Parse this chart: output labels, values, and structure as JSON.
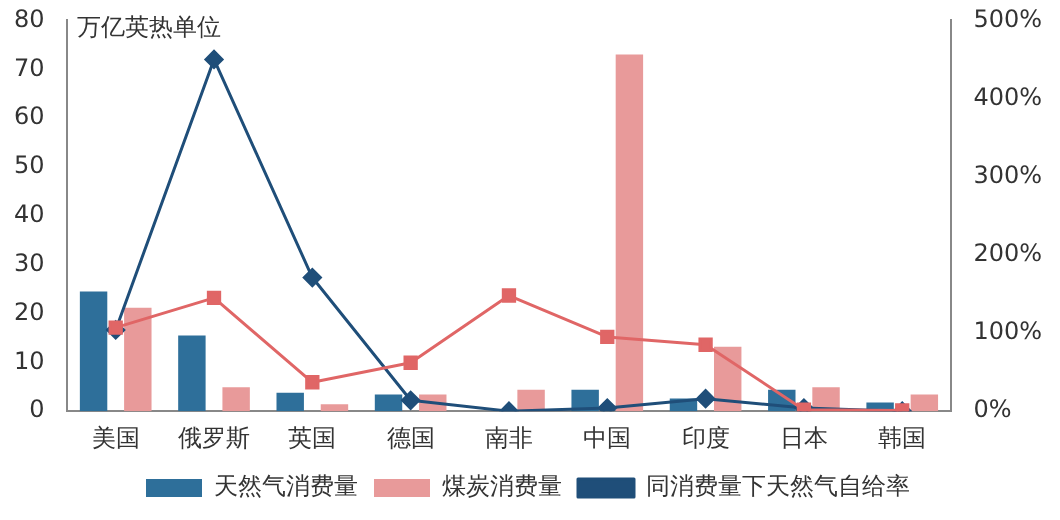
{
  "chart_data": {
    "type": "bar",
    "ylabel": "万亿英热单位",
    "categories": [
      "美国",
      "俄罗斯",
      "英国",
      "德国",
      "南非",
      "中国",
      "印度",
      "日本",
      "韩国"
    ],
    "series": [
      {
        "name": "天然气消费量",
        "color": "#2e6f9a",
        "values": [
          24.5,
          15.5,
          3.8,
          3.4,
          0,
          4.4,
          2.6,
          4.4,
          1.8
        ]
      },
      {
        "name": "煤炭消费量",
        "color": "#e89a9a",
        "values": [
          21.2,
          4.9,
          1.4,
          3.4,
          4.4,
          73,
          13.2,
          4.9,
          3.4
        ]
      },
      {
        "name": "同消费量下天然气自给率",
        "type": "line",
        "axis": "y2",
        "marker": "diamond",
        "color": "#1f4e79",
        "values": [
          104,
          450,
          171,
          14,
          0,
          4,
          16,
          4,
          0
        ]
      },
      {
        "type": "line",
        "axis": "y2",
        "marker": "square",
        "color": "#e06666",
        "values": [
          107,
          145,
          37,
          62,
          148,
          95,
          85,
          2,
          1
        ]
      }
    ],
    "ylim": [
      0,
      80
    ],
    "yticks": [
      0,
      10,
      20,
      30,
      40,
      50,
      60,
      70,
      80
    ],
    "y2lim": [
      0,
      500
    ],
    "y2ticks": [
      {
        "value": 0,
        "label": "0%"
      },
      {
        "value": 100,
        "label": "100%"
      },
      {
        "value": 200,
        "label": "200%"
      },
      {
        "value": 300,
        "label": "300%"
      },
      {
        "value": 400,
        "label": "400%"
      },
      {
        "value": 500,
        "label": "500%"
      }
    ],
    "grid": false,
    "legend": "bottom"
  }
}
